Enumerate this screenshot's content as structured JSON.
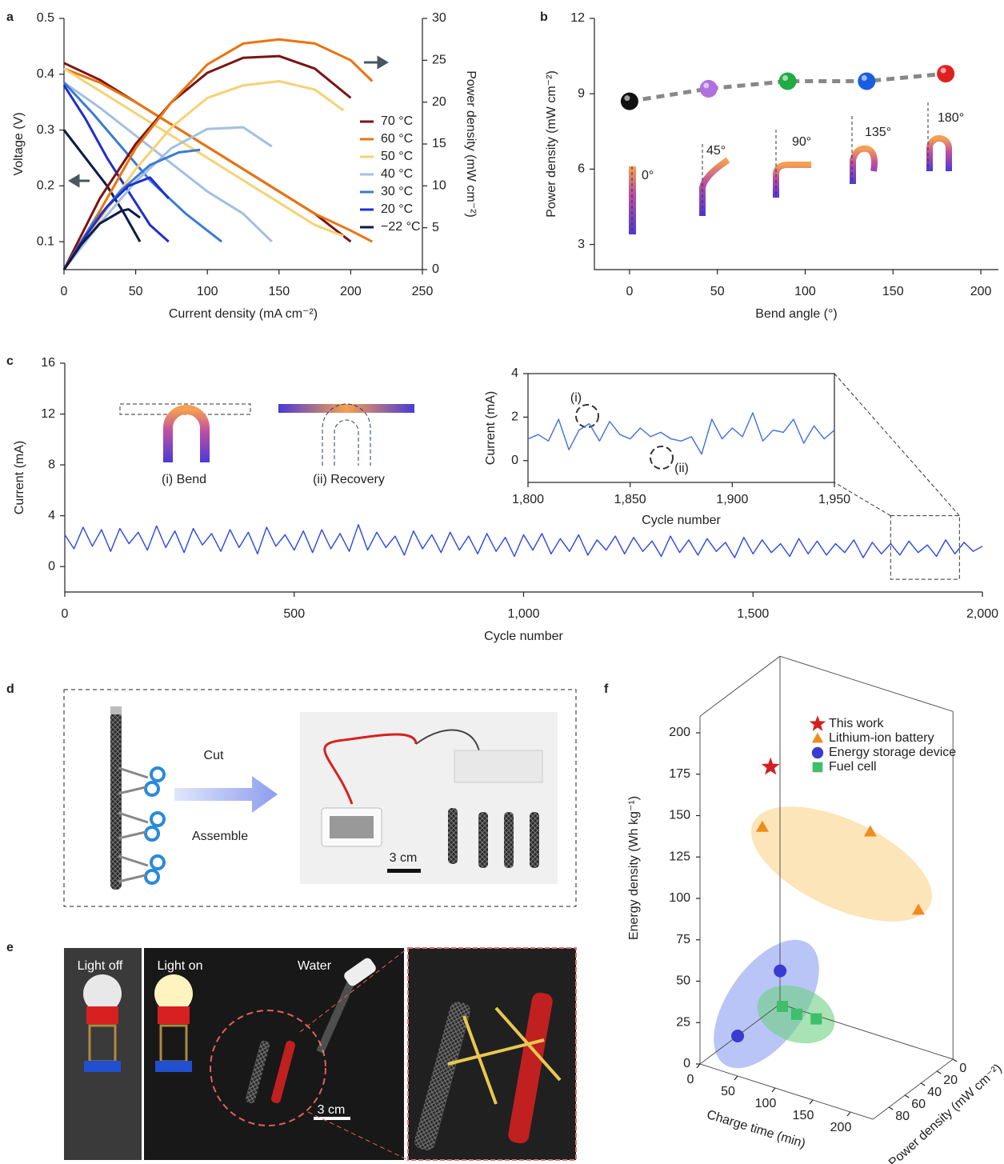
{
  "panel_labels": [
    "a",
    "b",
    "c",
    "d",
    "e",
    "f"
  ],
  "chart_data": [
    {
      "type": "line",
      "xlabel": "Current density (mA cm⁻²)",
      "ylabel": "Voltage (V)",
      "y2label": "Power density (mW cm⁻²)",
      "xlim": [
        0,
        250
      ],
      "xticks": [
        0,
        50,
        100,
        150,
        200,
        250
      ],
      "ylim": [
        0.05,
        0.5
      ],
      "yticks": [
        0.1,
        0.2,
        0.3,
        0.4,
        0.5
      ],
      "y2lim": [
        0,
        30
      ],
      "y2ticks": [
        0,
        5,
        10,
        15,
        20,
        25,
        30
      ],
      "legend": "right",
      "series": [
        {
          "name": "70 °C",
          "color": "#7b1414",
          "x": [
            0,
            25,
            50,
            75,
            100,
            125,
            150,
            175,
            200
          ],
          "values": [
            0.42,
            0.39,
            0.35,
            0.31,
            0.27,
            0.23,
            0.19,
            0.15,
            0.1
          ]
        },
        {
          "name": "60 °C",
          "color": "#ea7410",
          "x": [
            0,
            25,
            50,
            75,
            100,
            125,
            150,
            175,
            200,
            215
          ],
          "values": [
            0.41,
            0.385,
            0.35,
            0.31,
            0.27,
            0.23,
            0.19,
            0.15,
            0.12,
            0.1
          ]
        },
        {
          "name": "50 °C",
          "color": "#f6d274",
          "x": [
            0,
            25,
            50,
            75,
            100,
            125,
            150,
            175,
            195
          ],
          "values": [
            0.41,
            0.37,
            0.33,
            0.29,
            0.25,
            0.21,
            0.17,
            0.13,
            0.11
          ]
        },
        {
          "name": "40 °C",
          "color": "#a2c0e2",
          "x": [
            0,
            25,
            50,
            75,
            100,
            125,
            145
          ],
          "values": [
            0.385,
            0.34,
            0.29,
            0.24,
            0.19,
            0.15,
            0.1
          ]
        },
        {
          "name": "30 °C",
          "color": "#3a7bd5",
          "x": [
            0,
            20,
            40,
            60,
            85,
            110
          ],
          "values": [
            0.385,
            0.33,
            0.27,
            0.21,
            0.15,
            0.1
          ]
        },
        {
          "name": "20 °C",
          "color": "#1f2fd0",
          "x": [
            0,
            15,
            30,
            45,
            60,
            73
          ],
          "values": [
            0.38,
            0.32,
            0.25,
            0.19,
            0.13,
            0.1
          ]
        },
        {
          "name": "−22 °C",
          "color": "#0d1a4a",
          "x": [
            0,
            15,
            30,
            42,
            53
          ],
          "values": [
            0.3,
            0.25,
            0.2,
            0.15,
            0.1
          ]
        },
        {
          "color": "#7b1414",
          "axis": "y2",
          "x": [
            0,
            25,
            50,
            75,
            100,
            125,
            150,
            175,
            200
          ],
          "values": [
            0,
            8.5,
            15,
            20,
            23.5,
            25.3,
            25.5,
            24,
            20.5
          ]
        },
        {
          "color": "#ea7410",
          "axis": "y2",
          "x": [
            0,
            25,
            50,
            75,
            100,
            125,
            150,
            175,
            200,
            215
          ],
          "values": [
            0,
            7,
            14.5,
            20,
            24.5,
            27,
            27.5,
            27,
            25,
            22.5
          ]
        },
        {
          "color": "#f6d274",
          "axis": "y2",
          "x": [
            0,
            25,
            50,
            75,
            100,
            125,
            150,
            175,
            195
          ],
          "values": [
            0,
            6,
            12,
            17,
            20.5,
            22,
            22.5,
            21.5,
            19
          ]
        },
        {
          "color": "#a2c0e2",
          "axis": "y2",
          "x": [
            0,
            25,
            50,
            75,
            100,
            125,
            145
          ],
          "values": [
            0,
            5.5,
            10.5,
            14.5,
            16.8,
            17,
            14.7
          ]
        },
        {
          "color": "#3a7bd5",
          "axis": "y2",
          "x": [
            0,
            20,
            40,
            60,
            80,
            95
          ],
          "values": [
            0,
            5.5,
            9.5,
            12.5,
            14,
            14.3
          ]
        },
        {
          "color": "#1f2fd0",
          "axis": "y2",
          "x": [
            0,
            15,
            30,
            45,
            60,
            73
          ],
          "values": [
            0,
            4,
            7.5,
            10,
            11,
            8.5
          ]
        },
        {
          "color": "#0d1a4a",
          "axis": "y2",
          "x": [
            0,
            12,
            25,
            40,
            45,
            53
          ],
          "values": [
            0,
            3,
            5.5,
            7,
            7.2,
            6.2
          ]
        }
      ]
    },
    {
      "type": "scatter",
      "xlabel": "Bend angle (°)",
      "ylabel": "Power density (mW cm⁻²)",
      "xlim": [
        -20,
        210
      ],
      "xticks": [
        0,
        50,
        100,
        150,
        200
      ],
      "ylim": [
        2,
        12
      ],
      "yticks": [
        3,
        6,
        9,
        12
      ],
      "x": [
        0,
        45,
        90,
        135,
        180
      ],
      "values": [
        8.7,
        9.2,
        9.5,
        9.5,
        9.8
      ],
      "colors": [
        "#111111",
        "#b070e0",
        "#22aa44",
        "#1a5ee0",
        "#e02020"
      ],
      "line_color": "#888888",
      "annotations": [
        "0°",
        "45°",
        "90°",
        "135°",
        "180°"
      ]
    },
    {
      "type": "line",
      "xlabel": "Cycle number",
      "ylabel": "Current (mA)",
      "xlim": [
        0,
        2000
      ],
      "xticks": [
        0,
        500,
        {
          "value": 1000,
          "label": "1,000"
        },
        {
          "value": 1500,
          "label": "1,500"
        },
        {
          "value": 2000,
          "label": "2,000"
        }
      ],
      "ylim": [
        -2,
        16
      ],
      "yticks": [
        0,
        4,
        8,
        12,
        16
      ],
      "series": [
        {
          "color": "#2b45e8",
          "x": [
            0,
            20,
            40,
            60,
            80,
            100,
            120,
            140,
            160,
            180,
            200,
            220,
            240,
            260,
            280,
            300,
            320,
            340,
            360,
            380,
            400,
            420,
            440,
            460,
            480,
            500,
            520,
            540,
            560,
            580,
            600,
            620,
            640,
            660,
            680,
            700,
            720,
            740,
            760,
            780,
            800,
            820,
            840,
            860,
            880,
            900,
            920,
            940,
            960,
            980,
            1000,
            1020,
            1040,
            1060,
            1080,
            1100,
            1120,
            1140,
            1160,
            1180,
            1200,
            1220,
            1240,
            1260,
            1280,
            1300,
            1320,
            1340,
            1360,
            1380,
            1400,
            1420,
            1440,
            1460,
            1480,
            1500,
            1520,
            1540,
            1560,
            1580,
            1600,
            1620,
            1640,
            1660,
            1680,
            1700,
            1720,
            1740,
            1760,
            1780,
            1800,
            1820,
            1840,
            1860,
            1880,
            1900,
            1920,
            1940,
            1960,
            1980,
            2000
          ],
          "values": [
            2.5,
            1.4,
            3.1,
            1.6,
            2.9,
            1.2,
            3.0,
            1.8,
            2.7,
            1.3,
            3.2,
            1.5,
            2.8,
            1.1,
            3.0,
            1.7,
            2.6,
            1.2,
            2.9,
            1.5,
            2.7,
            1.0,
            3.1,
            1.6,
            2.5,
            1.3,
            2.8,
            1.1,
            2.9,
            1.4,
            2.6,
            1.2,
            3.3,
            1.3,
            2.7,
            1.5,
            2.4,
            0.9,
            2.8,
            1.4,
            2.5,
            1.1,
            2.7,
            1.3,
            2.4,
            1.0,
            2.6,
            1.2,
            2.3,
            0.8,
            2.5,
            1.3,
            2.6,
            1.0,
            2.2,
            1.2,
            2.5,
            0.9,
            2.1,
            1.3,
            2.4,
            1.0,
            2.3,
            1.2,
            2.0,
            0.8,
            2.4,
            1.1,
            2.1,
            0.9,
            2.2,
            1.2,
            1.9,
            0.7,
            2.3,
            1.0,
            2.1,
            1.1,
            1.8,
            0.8,
            2.2,
            1.0,
            2.0,
            0.9,
            1.8,
            1.1,
            2.1,
            0.7,
            1.9,
            1.0,
            1.8,
            0.9,
            2.0,
            1.1,
            1.7,
            0.8,
            2.1,
            1.0,
            1.9,
            1.2,
            1.6
          ]
        }
      ],
      "annotations": [
        "(i) Bend",
        "(ii) Recovery"
      ]
    },
    {
      "type": "line",
      "xlabel": "Cycle number",
      "ylabel": "Current (mA)",
      "xlim": [
        1800,
        1950
      ],
      "xticks": [
        {
          "value": 1800,
          "label": "1,800"
        },
        {
          "value": 1850,
          "label": "1,850"
        },
        {
          "value": 1900,
          "label": "1,900"
        },
        {
          "value": 1950,
          "label": "1,950"
        }
      ],
      "ylim": [
        -1,
        4
      ],
      "yticks": [
        0,
        2,
        4
      ],
      "series": [
        {
          "color": "#3f6fe0",
          "x": [
            1800,
            1805,
            1810,
            1815,
            1820,
            1825,
            1830,
            1835,
            1840,
            1845,
            1850,
            1855,
            1860,
            1865,
            1870,
            1875,
            1880,
            1885,
            1890,
            1895,
            1900,
            1905,
            1910,
            1915,
            1920,
            1925,
            1930,
            1935,
            1940,
            1945,
            1950
          ],
          "values": [
            1.0,
            1.2,
            0.9,
            1.9,
            0.5,
            1.4,
            1.7,
            0.9,
            1.8,
            1.2,
            1.0,
            1.5,
            1.1,
            1.3,
            1.0,
            0.9,
            1.1,
            0.3,
            1.9,
            1.0,
            1.5,
            1.1,
            2.2,
            0.9,
            1.4,
            1.3,
            1.9,
            0.8,
            1.6,
            1.0,
            1.4
          ]
        }
      ],
      "annotations": [
        "(i)",
        "(ii)"
      ]
    },
    {
      "type": "scatter3d",
      "xlabel": "Charge time (min)",
      "ylabel": "Power density (mW cm⁻²)",
      "zlabel": "Energy density (Wh kg⁻¹)",
      "xlim": [
        0,
        230
      ],
      "xticks": [
        0,
        50,
        100,
        150,
        200
      ],
      "ylim": [
        0,
        100
      ],
      "yticks": [
        0,
        20,
        40,
        60,
        80
      ],
      "zlim": [
        0,
        210
      ],
      "zticks": [
        0,
        25,
        50,
        75,
        100,
        125,
        150,
        175,
        200
      ],
      "series": [
        {
          "name": "This work",
          "color": "#d42020",
          "marker": "star",
          "x": [
            30
          ],
          "y": [
            40
          ],
          "values": [
            162
          ]
        },
        {
          "name": "Lithium-ion battery",
          "color": "#f08c1e",
          "marker": "triangle",
          "x": [
            8.5,
            152,
            216
          ],
          "y": [
            30,
            30,
            30
          ],
          "values": [
            119,
            137,
            99
          ]
        },
        {
          "name": "Energy storage device",
          "color": "#3b3bd0",
          "marker": "circle",
          "x": [
            64,
            7.5
          ],
          "y": [
            60,
            60
          ],
          "values": [
            51,
            3.5
          ]
        },
        {
          "name": "Fuel cell",
          "color": "#3fbf6a",
          "marker": "square",
          "x": [
            67,
            86,
            112
          ],
          "y": [
            60,
            60,
            60
          ],
          "values": [
            30,
            28,
            29
          ]
        }
      ]
    }
  ],
  "panel_d": {
    "labels": [
      "Cut",
      "Assemble",
      "3 cm"
    ]
  },
  "panel_e": {
    "labels": [
      "Light off",
      "Light on",
      "Water",
      "3 cm"
    ]
  }
}
